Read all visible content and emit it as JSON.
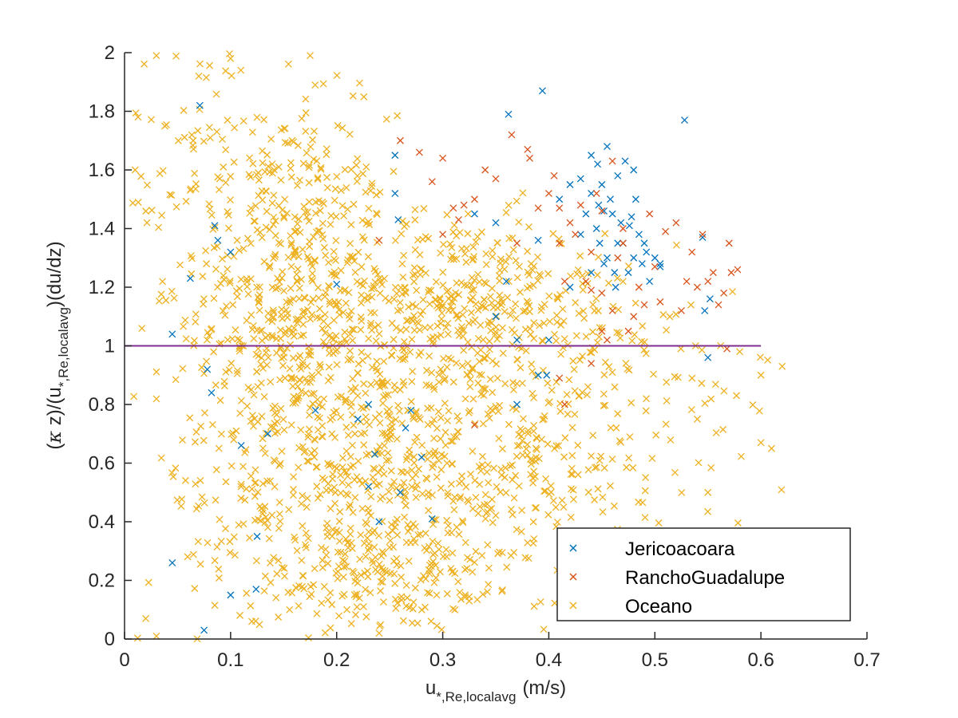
{
  "chart_data": {
    "type": "scatter",
    "xlabel_main": "u",
    "xlabel_sub": "*,Re,localavg",
    "xlabel_unit": "(m/s)",
    "ylabel_pre": "(",
    "ylabel_kappa": "κ",
    "ylabel_mid": " z)/(u",
    "ylabel_sub": "*,Re,localavg",
    "ylabel_post": ")(du/dz)",
    "xlim": [
      0,
      0.7
    ],
    "ylim": [
      0,
      2
    ],
    "xticks": [
      0,
      0.1,
      0.2,
      0.3,
      0.4,
      0.5,
      0.6,
      0.7
    ],
    "xtick_labels": [
      "0",
      "0.1",
      "0.2",
      "0.3",
      "0.4",
      "0.5",
      "0.6",
      "0.7"
    ],
    "yticks": [
      0,
      0.2,
      0.4,
      0.6,
      0.8,
      1,
      1.2,
      1.4,
      1.6,
      1.8,
      2
    ],
    "ytick_labels": [
      "0",
      "0.2",
      "0.4",
      "0.6",
      "0.8",
      "1",
      "1.2",
      "1.4",
      "1.6",
      "1.8",
      "2"
    ],
    "grid": false,
    "legend_position": "bottom-right",
    "reference_line": {
      "x": [
        0,
        0.6
      ],
      "y": 1,
      "color": "#7E2F8E"
    },
    "series": [
      {
        "name": "Jericoacoara",
        "color": "#0072BD",
        "marker": "x",
        "points": [
          [
            0.071,
            1.82
          ],
          [
            0.045,
            1.04
          ],
          [
            0.062,
            1.23
          ],
          [
            0.085,
            1.41
          ],
          [
            0.088,
            1.36
          ],
          [
            0.1,
            1.32
          ],
          [
            0.078,
            0.92
          ],
          [
            0.082,
            0.84
          ],
          [
            0.11,
            0.66
          ],
          [
            0.125,
            0.35
          ],
          [
            0.135,
            0.7
          ],
          [
            0.045,
            0.26
          ],
          [
            0.1,
            0.15
          ],
          [
            0.124,
            0.17
          ],
          [
            0.075,
            0.03
          ],
          [
            0.18,
            0.78
          ],
          [
            0.2,
            1.21
          ],
          [
            0.22,
            0.75
          ],
          [
            0.23,
            0.52
          ],
          [
            0.236,
            0.63
          ],
          [
            0.23,
            0.8
          ],
          [
            0.24,
            0.4
          ],
          [
            0.26,
            0.5
          ],
          [
            0.27,
            0.78
          ],
          [
            0.265,
            0.72
          ],
          [
            0.28,
            0.62
          ],
          [
            0.29,
            0.41
          ],
          [
            0.255,
            1.65
          ],
          [
            0.255,
            1.52
          ],
          [
            0.258,
            1.43
          ],
          [
            0.33,
            1.45
          ],
          [
            0.35,
            1.1
          ],
          [
            0.36,
            1.22
          ],
          [
            0.362,
            1.79
          ],
          [
            0.37,
            0.8
          ],
          [
            0.39,
            0.9
          ],
          [
            0.4,
            1.02
          ],
          [
            0.39,
            1.36
          ],
          [
            0.394,
            1.87
          ],
          [
            0.41,
            1.5
          ],
          [
            0.42,
            1.55
          ],
          [
            0.43,
            1.57
          ],
          [
            0.435,
            1.45
          ],
          [
            0.44,
            1.65
          ],
          [
            0.44,
            1.52
          ],
          [
            0.445,
            1.4
          ],
          [
            0.446,
            1.62
          ],
          [
            0.448,
            1.35
          ],
          [
            0.45,
            1.55
          ],
          [
            0.452,
            1.46
          ],
          [
            0.455,
            1.68
          ],
          [
            0.455,
            1.3
          ],
          [
            0.458,
            1.5
          ],
          [
            0.46,
            1.45
          ],
          [
            0.462,
            1.25
          ],
          [
            0.465,
            1.58
          ],
          [
            0.468,
            1.42
          ],
          [
            0.47,
            1.35
          ],
          [
            0.472,
            1.63
          ],
          [
            0.475,
            1.25
          ],
          [
            0.478,
            1.44
          ],
          [
            0.48,
            1.6
          ],
          [
            0.48,
            1.3
          ],
          [
            0.482,
            1.5
          ],
          [
            0.485,
            1.38
          ],
          [
            0.488,
            1.28
          ],
          [
            0.49,
            1.35
          ],
          [
            0.492,
            1.32
          ],
          [
            0.495,
            1.22
          ],
          [
            0.5,
            1.3
          ],
          [
            0.505,
            1.27
          ],
          [
            0.505,
            1.28
          ],
          [
            0.528,
            1.77
          ],
          [
            0.545,
            1.37
          ],
          [
            0.547,
            1.12
          ],
          [
            0.55,
            0.96
          ],
          [
            0.552,
            1.16
          ],
          [
            0.37,
            1.02
          ],
          [
            0.398,
            0.9
          ],
          [
            0.42,
            1.2
          ],
          [
            0.43,
            1.38
          ],
          [
            0.44,
            1.25
          ],
          [
            0.447,
            1.48
          ],
          [
            0.452,
            1.28
          ],
          [
            0.463,
            1.2
          ],
          [
            0.476,
            1.41
          ],
          [
            0.35,
            1.42
          ],
          [
            0.465,
            1.35
          ]
        ]
      },
      {
        "name": "RanchoGuadalupe",
        "color": "#D95319",
        "marker": "x",
        "points": [
          [
            0.26,
            1.7
          ],
          [
            0.278,
            1.66
          ],
          [
            0.29,
            1.56
          ],
          [
            0.3,
            1.64
          ],
          [
            0.3,
            1.38
          ],
          [
            0.31,
            1.47
          ],
          [
            0.315,
            1.43
          ],
          [
            0.32,
            1.48
          ],
          [
            0.33,
            1.5
          ],
          [
            0.34,
            1.6
          ],
          [
            0.35,
            1.57
          ],
          [
            0.365,
            1.72
          ],
          [
            0.37,
            1.35
          ],
          [
            0.38,
            1.67
          ],
          [
            0.382,
            1.64
          ],
          [
            0.39,
            1.47
          ],
          [
            0.4,
            1.52
          ],
          [
            0.405,
            1.58
          ],
          [
            0.41,
            1.35
          ],
          [
            0.41,
            1.47
          ],
          [
            0.415,
            1.22
          ],
          [
            0.42,
            1.42
          ],
          [
            0.425,
            1.38
          ],
          [
            0.43,
            1.48
          ],
          [
            0.435,
            1.22
          ],
          [
            0.44,
            1.32
          ],
          [
            0.445,
            1.52
          ],
          [
            0.45,
            1.05
          ],
          [
            0.45,
            1.18
          ],
          [
            0.455,
            1.02
          ],
          [
            0.46,
            1.12
          ],
          [
            0.465,
            1.3
          ],
          [
            0.47,
            1.35
          ],
          [
            0.475,
            1.05
          ],
          [
            0.48,
            1.1
          ],
          [
            0.485,
            1.2
          ],
          [
            0.49,
            1.14
          ],
          [
            0.495,
            1.45
          ],
          [
            0.5,
            1.27
          ],
          [
            0.505,
            1.15
          ],
          [
            0.51,
            1.39
          ],
          [
            0.52,
            1.42
          ],
          [
            0.525,
            1.12
          ],
          [
            0.53,
            1.22
          ],
          [
            0.535,
            1.32
          ],
          [
            0.54,
            1.2
          ],
          [
            0.545,
            1.38
          ],
          [
            0.55,
            1.22
          ],
          [
            0.555,
            1.25
          ],
          [
            0.56,
            1.14
          ],
          [
            0.565,
            1.18
          ],
          [
            0.57,
            1.35
          ],
          [
            0.572,
            1.25
          ],
          [
            0.578,
            1.26
          ],
          [
            0.568,
            0.99
          ],
          [
            0.41,
            0.89
          ],
          [
            0.415,
            0.8
          ],
          [
            0.44,
            0.94
          ],
          [
            0.33,
            0.73
          ],
          [
            0.24,
            1.36
          ],
          [
            0.46,
            1.63
          ],
          [
            0.47,
            1.4
          ],
          [
            0.45,
            1.46
          ],
          [
            0.44,
            1.19
          ]
        ]
      },
      {
        "name": "Oceano",
        "color": "#EDB120",
        "marker": "x",
        "clusters": [
          {
            "cx": 0.16,
            "cy": 1.15,
            "sx": 0.045,
            "sy": 0.32,
            "n": 460
          },
          {
            "cx": 0.31,
            "cy": 1.13,
            "sx": 0.07,
            "sy": 0.16,
            "n": 420
          },
          {
            "cx": 0.22,
            "cy": 0.52,
            "sx": 0.055,
            "sy": 0.26,
            "n": 360
          },
          {
            "cx": 0.34,
            "cy": 0.62,
            "sx": 0.07,
            "sy": 0.22,
            "n": 320
          },
          {
            "cx": 0.1,
            "cy": 1.6,
            "sx": 0.06,
            "sy": 0.26,
            "n": 140
          },
          {
            "cx": 0.09,
            "cy": 0.55,
            "sx": 0.06,
            "sy": 0.35,
            "n": 110
          },
          {
            "cx": 0.26,
            "cy": 0.2,
            "sx": 0.06,
            "sy": 0.12,
            "n": 120
          },
          {
            "cx": 0.48,
            "cy": 0.7,
            "sx": 0.06,
            "sy": 0.25,
            "n": 80
          },
          {
            "cx": 0.45,
            "cy": 1.05,
            "sx": 0.08,
            "sy": 0.15,
            "n": 60
          }
        ],
        "extra_points": [
          [
            0.03,
            1.99
          ],
          [
            0.07,
            1.92
          ],
          [
            0.1,
            1.98
          ],
          [
            0.175,
            1.99
          ],
          [
            0.01,
            1.6
          ],
          [
            0.6,
            0.67
          ],
          [
            0.61,
            0.65
          ],
          [
            0.62,
            0.93
          ],
          [
            0.6,
            0.9
          ],
          [
            0.58,
            0.98
          ],
          [
            0.03,
            0.01
          ],
          [
            0.12,
            0.06
          ],
          [
            0.02,
            0.07
          ],
          [
            0.24,
            0.02
          ],
          [
            0.55,
            0.5
          ],
          [
            0.54,
            0.75
          ]
        ]
      }
    ]
  }
}
